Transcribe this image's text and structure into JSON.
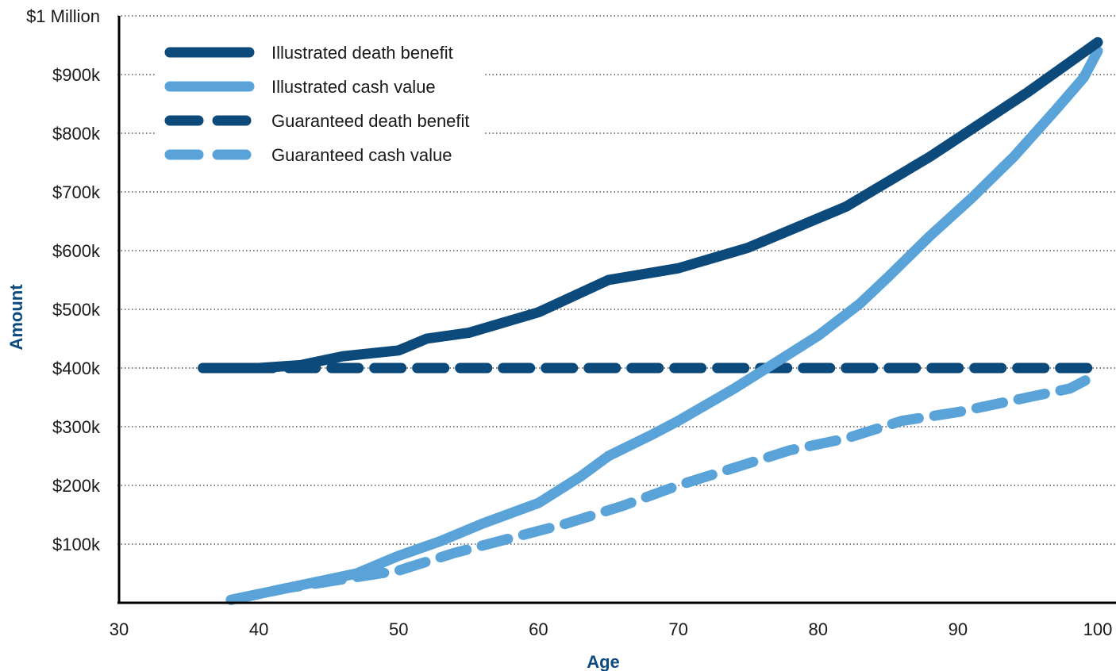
{
  "colors": {
    "dark_blue": "#0d4a7c",
    "light_blue": "#5aa3d8",
    "axis_title": "#0c4a80",
    "grid": "#333333",
    "axis": "#000000"
  },
  "chart_data": {
    "type": "line",
    "xlabel": "Age",
    "ylabel": "Amount",
    "xlim": [
      30,
      100
    ],
    "ylim": [
      0,
      1000000
    ],
    "x_ticks": [
      {
        "value": 30,
        "label": "30"
      },
      {
        "value": 40,
        "label": "40"
      },
      {
        "value": 50,
        "label": "50"
      },
      {
        "value": 60,
        "label": "60"
      },
      {
        "value": 70,
        "label": "70"
      },
      {
        "value": 80,
        "label": "80"
      },
      {
        "value": 90,
        "label": "90"
      },
      {
        "value": 100,
        "label": "100"
      }
    ],
    "y_ticks": [
      {
        "value": 100000,
        "label": "$100k"
      },
      {
        "value": 200000,
        "label": "$200k"
      },
      {
        "value": 300000,
        "label": "$300k"
      },
      {
        "value": 400000,
        "label": "$400k"
      },
      {
        "value": 500000,
        "label": "$500k"
      },
      {
        "value": 600000,
        "label": "$600k"
      },
      {
        "value": 700000,
        "label": "$700k"
      },
      {
        "value": 800000,
        "label": "$800k"
      },
      {
        "value": 900000,
        "label": "$900k"
      },
      {
        "value": 1000000,
        "label": "$1 Million"
      }
    ],
    "grid": "horizontal dotted",
    "legend_position": "top-left",
    "series": [
      {
        "name": "Illustrated death benefit",
        "color": "#0d4a7c",
        "style": "solid",
        "points": [
          [
            36,
            400000
          ],
          [
            40,
            400000
          ],
          [
            43,
            405000
          ],
          [
            46,
            420000
          ],
          [
            50,
            430000
          ],
          [
            52,
            450000
          ],
          [
            55,
            460000
          ],
          [
            60,
            495000
          ],
          [
            65,
            550000
          ],
          [
            70,
            570000
          ],
          [
            75,
            605000
          ],
          [
            82,
            675000
          ],
          [
            88,
            760000
          ],
          [
            95,
            870000
          ],
          [
            100,
            955000
          ]
        ]
      },
      {
        "name": "Illustrated cash value",
        "color": "#5aa3d8",
        "style": "solid",
        "points": [
          [
            38,
            5000
          ],
          [
            41,
            20000
          ],
          [
            44,
            35000
          ],
          [
            47,
            50000
          ],
          [
            50,
            80000
          ],
          [
            53,
            105000
          ],
          [
            56,
            135000
          ],
          [
            60,
            170000
          ],
          [
            63,
            215000
          ],
          [
            65,
            250000
          ],
          [
            68,
            285000
          ],
          [
            70,
            310000
          ],
          [
            74,
            365000
          ],
          [
            77,
            410000
          ],
          [
            80,
            455000
          ],
          [
            83,
            510000
          ],
          [
            85,
            555000
          ],
          [
            88,
            625000
          ],
          [
            91,
            690000
          ],
          [
            94,
            760000
          ],
          [
            97,
            840000
          ],
          [
            99,
            895000
          ],
          [
            100,
            940000
          ]
        ]
      },
      {
        "name": "Guaranteed death benefit",
        "color": "#0d4a7c",
        "style": "dashed",
        "points": [
          [
            36,
            400000
          ],
          [
            100,
            400000
          ]
        ]
      },
      {
        "name": "Guaranteed cash value",
        "color": "#5aa3d8",
        "style": "dashed",
        "points": [
          [
            38,
            5000
          ],
          [
            42,
            25000
          ],
          [
            46,
            40000
          ],
          [
            50,
            55000
          ],
          [
            54,
            85000
          ],
          [
            58,
            110000
          ],
          [
            62,
            135000
          ],
          [
            66,
            165000
          ],
          [
            70,
            200000
          ],
          [
            74,
            230000
          ],
          [
            78,
            260000
          ],
          [
            82,
            280000
          ],
          [
            86,
            310000
          ],
          [
            90,
            325000
          ],
          [
            94,
            345000
          ],
          [
            98,
            365000
          ],
          [
            100,
            390000
          ]
        ]
      }
    ]
  }
}
